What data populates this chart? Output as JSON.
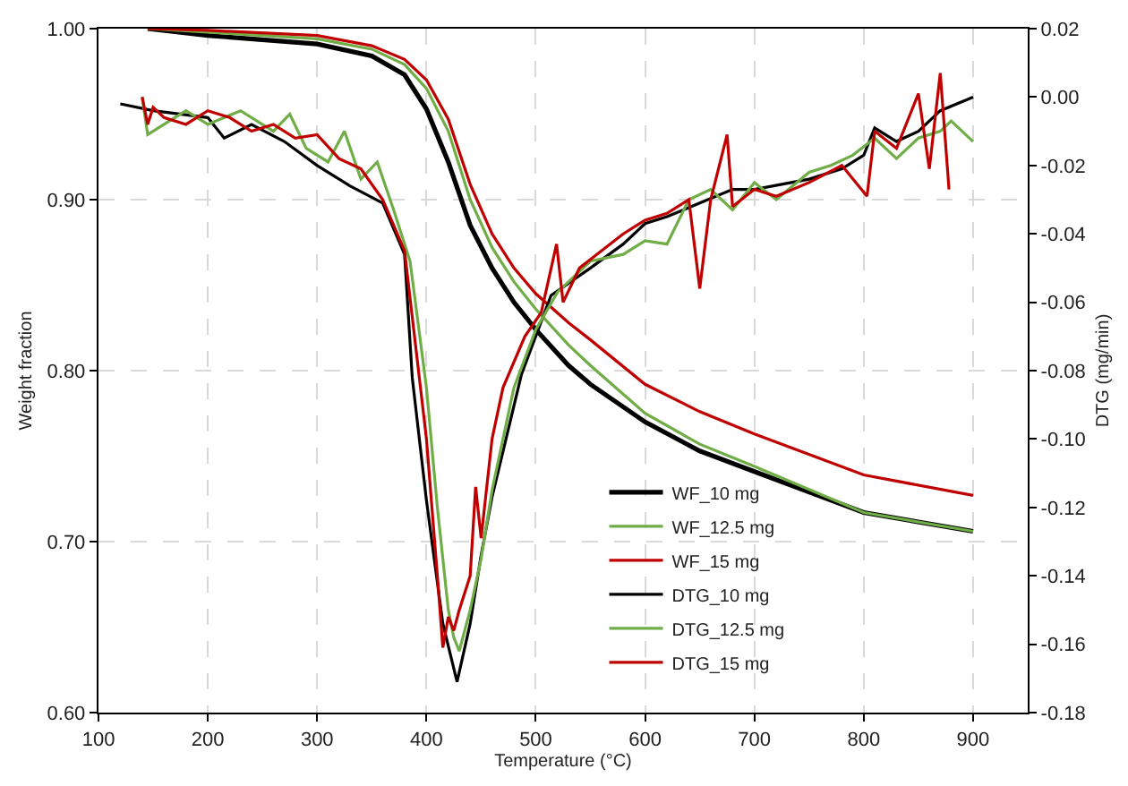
{
  "chart_data": {
    "type": "line",
    "xlabel": "Temperature (°C)",
    "ylabel": "Weight fraction",
    "y2label": "DTG (mg/min)",
    "xlim": [
      100,
      950
    ],
    "xticks": [
      100,
      200,
      300,
      400,
      500,
      600,
      700,
      800,
      900
    ],
    "ylim": [
      0.6,
      1.0
    ],
    "yticks": [
      {
        "value": 0.6,
        "label": "0.60"
      },
      {
        "value": 0.7,
        "label": "0.70"
      },
      {
        "value": 0.8,
        "label": "0.80"
      },
      {
        "value": 0.9,
        "label": "0.90"
      },
      {
        "value": 1.0,
        "label": "1.00"
      }
    ],
    "y2lim": [
      -0.18,
      0.02
    ],
    "y2ticks": [
      {
        "value": -0.18,
        "label": "-0.18"
      },
      {
        "value": -0.16,
        "label": "-0.16"
      },
      {
        "value": -0.14,
        "label": "-0.14"
      },
      {
        "value": -0.12,
        "label": "-0.12"
      },
      {
        "value": -0.1,
        "label": "-0.10"
      },
      {
        "value": -0.08,
        "label": "-0.08"
      },
      {
        "value": -0.06,
        "label": "-0.06"
      },
      {
        "value": -0.04,
        "label": "-0.04"
      },
      {
        "value": -0.02,
        "label": "-0.02"
      },
      {
        "value": 0,
        "label": "0.00"
      },
      {
        "value": 0.02,
        "label": "0.02"
      }
    ],
    "grid": true,
    "legend": "bottom right",
    "marker": "none",
    "line_style": "solid",
    "series": [
      {
        "name": "WF_10 mg",
        "color": "#000000",
        "x": [
          145,
          200,
          300,
          350,
          380,
          400,
          420,
          440,
          460,
          480,
          500,
          530,
          550,
          600,
          650,
          700,
          800,
          900
        ],
        "values": [
          1.0,
          0.996,
          0.991,
          0.984,
          0.973,
          0.953,
          0.922,
          0.885,
          0.86,
          0.84,
          0.824,
          0.803,
          0.792,
          0.77,
          0.753,
          0.741,
          0.717,
          0.706
        ]
      },
      {
        "name": "WF_12.5 mg",
        "color": "#70ad47",
        "x": [
          145,
          200,
          300,
          350,
          380,
          400,
          420,
          440,
          460,
          480,
          500,
          530,
          550,
          600,
          650,
          700,
          800,
          900
        ],
        "values": [
          1.0,
          0.998,
          0.994,
          0.988,
          0.979,
          0.965,
          0.94,
          0.9,
          0.872,
          0.852,
          0.836,
          0.815,
          0.803,
          0.775,
          0.757,
          0.744,
          0.717,
          0.706
        ]
      },
      {
        "name": "WF_15 mg",
        "color": "#c00000",
        "x": [
          145,
          200,
          300,
          350,
          380,
          400,
          420,
          440,
          460,
          480,
          500,
          530,
          550,
          600,
          650,
          700,
          800,
          900
        ],
        "values": [
          1.0,
          0.999,
          0.996,
          0.99,
          0.982,
          0.97,
          0.947,
          0.909,
          0.88,
          0.86,
          0.845,
          0.828,
          0.818,
          0.792,
          0.776,
          0.763,
          0.739,
          0.727
        ]
      },
      {
        "name": "DTG_10 mg",
        "color": "#000000",
        "axis": "y2",
        "x": [
          120,
          150,
          200,
          215,
          240,
          270,
          300,
          330,
          360,
          380,
          387,
          400,
          415,
          428,
          440,
          450,
          460,
          487,
          514,
          550,
          580,
          600,
          620,
          650,
          680,
          700,
          750,
          780,
          800,
          810,
          830,
          850,
          870,
          900
        ],
        "values": [
          -0.002,
          -0.004,
          -0.006,
          -0.012,
          -0.008,
          -0.013,
          -0.02,
          -0.026,
          -0.031,
          -0.046,
          -0.082,
          -0.118,
          -0.154,
          -0.171,
          -0.154,
          -0.134,
          -0.117,
          -0.081,
          -0.058,
          -0.05,
          -0.043,
          -0.037,
          -0.035,
          -0.031,
          -0.027,
          -0.027,
          -0.024,
          -0.021,
          -0.017,
          -0.009,
          -0.013,
          -0.01,
          -0.004,
          0.0
        ]
      },
      {
        "name": "DTG_12.5 mg",
        "color": "#70ad47",
        "axis": "y2",
        "x": [
          140,
          145,
          160,
          180,
          200,
          230,
          260,
          275,
          290,
          310,
          325,
          340,
          355,
          370,
          385,
          400,
          410,
          420,
          425,
          430,
          440,
          450,
          460,
          470,
          480,
          500,
          520,
          550,
          580,
          600,
          620,
          640,
          660,
          680,
          700,
          720,
          750,
          770,
          790,
          810,
          830,
          850,
          870,
          880,
          900
        ],
        "values": [
          0.0,
          -0.011,
          -0.008,
          -0.004,
          -0.008,
          -0.004,
          -0.01,
          -0.005,
          -0.015,
          -0.019,
          -0.01,
          -0.024,
          -0.019,
          -0.033,
          -0.048,
          -0.085,
          -0.12,
          -0.15,
          -0.158,
          -0.162,
          -0.15,
          -0.135,
          -0.115,
          -0.1,
          -0.085,
          -0.068,
          -0.057,
          -0.048,
          -0.046,
          -0.042,
          -0.043,
          -0.03,
          -0.027,
          -0.033,
          -0.025,
          -0.03,
          -0.022,
          -0.02,
          -0.017,
          -0.012,
          -0.018,
          -0.012,
          -0.01,
          -0.007,
          -0.013
        ]
      },
      {
        "name": "DTG_15 mg",
        "color": "#c00000",
        "axis": "y2",
        "x": [
          140,
          145,
          150,
          160,
          180,
          200,
          220,
          240,
          260,
          280,
          300,
          320,
          340,
          360,
          380,
          400,
          410,
          415,
          420,
          425,
          430,
          440,
          445,
          450,
          460,
          470,
          490,
          505,
          519,
          525,
          540,
          560,
          580,
          600,
          620,
          640,
          650,
          660,
          675,
          680,
          700,
          720,
          750,
          780,
          803,
          810,
          830,
          850,
          860,
          870,
          878
        ],
        "values": [
          0.0,
          -0.008,
          -0.003,
          -0.006,
          -0.008,
          -0.004,
          -0.006,
          -0.01,
          -0.008,
          -0.012,
          -0.011,
          -0.018,
          -0.021,
          -0.03,
          -0.045,
          -0.1,
          -0.14,
          -0.161,
          -0.152,
          -0.156,
          -0.15,
          -0.14,
          -0.114,
          -0.129,
          -0.1,
          -0.085,
          -0.07,
          -0.063,
          -0.043,
          -0.06,
          -0.05,
          -0.045,
          -0.04,
          -0.036,
          -0.034,
          -0.03,
          -0.056,
          -0.03,
          -0.011,
          -0.032,
          -0.027,
          -0.029,
          -0.025,
          -0.02,
          -0.029,
          -0.01,
          -0.015,
          0.001,
          -0.021,
          0.007,
          -0.027
        ]
      }
    ]
  }
}
